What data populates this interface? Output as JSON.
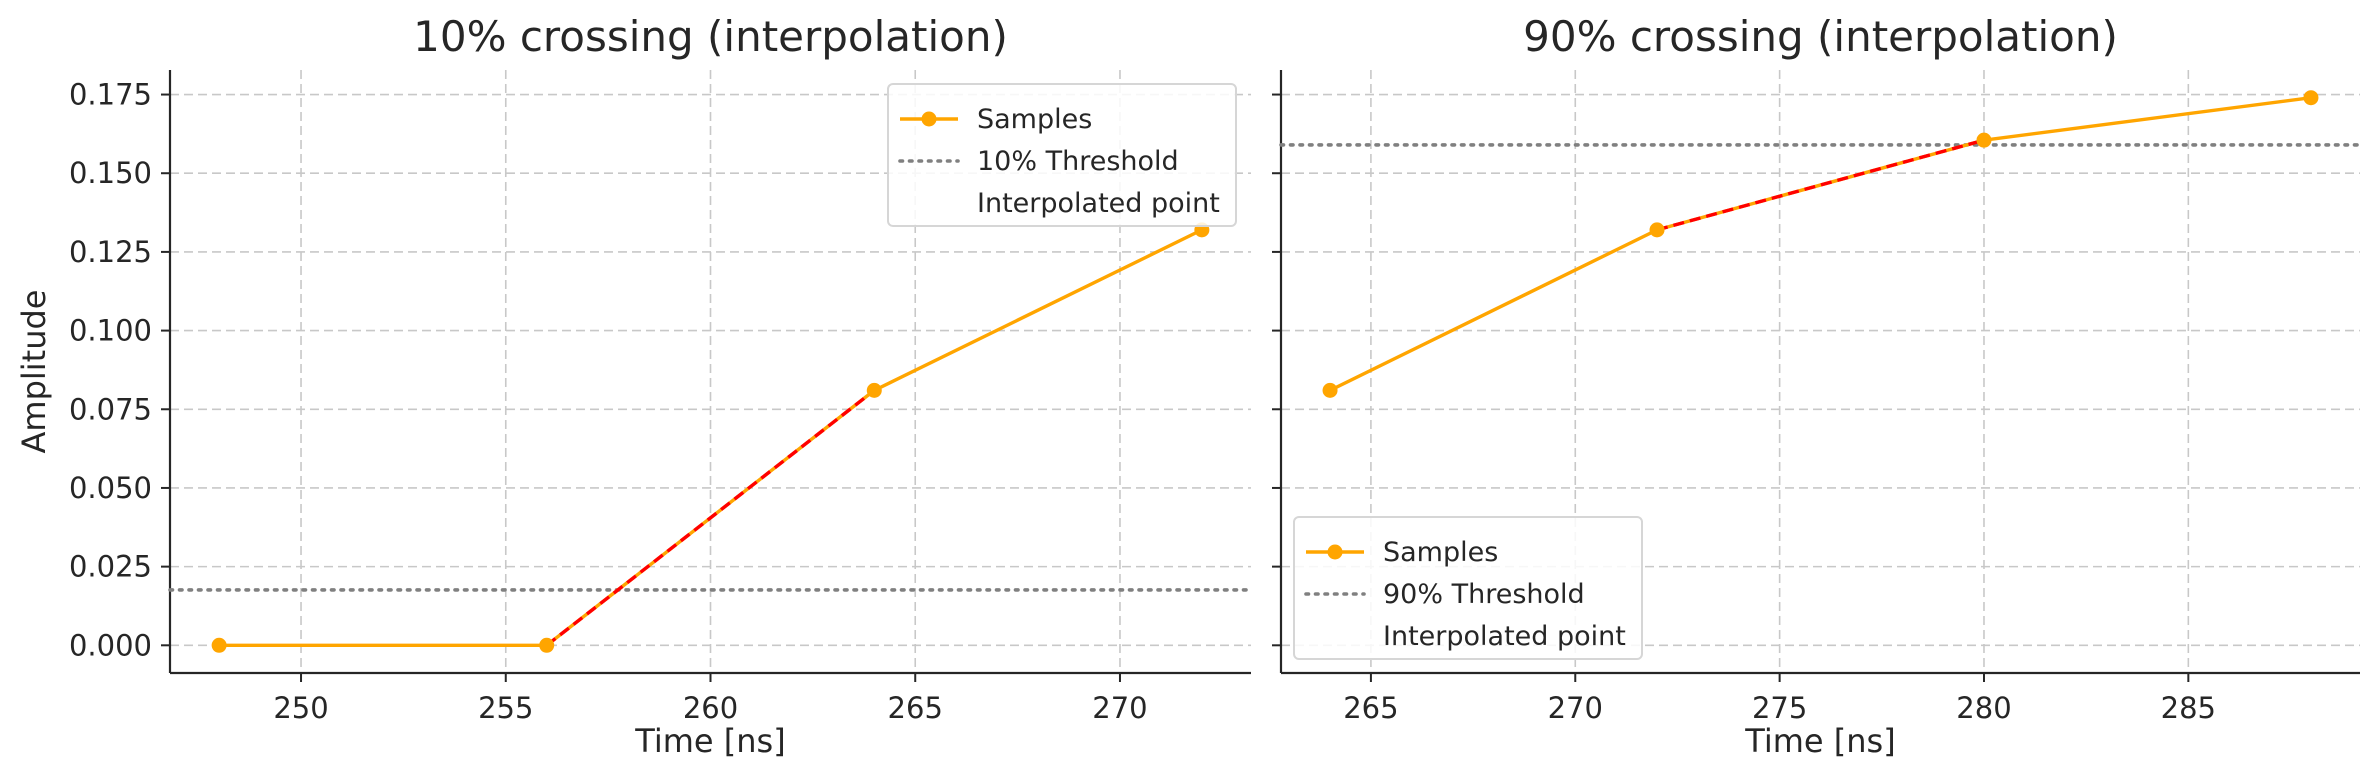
{
  "chart_data": [
    {
      "type": "line",
      "title": "10% crossing (interpolation)",
      "xlabel": "Time [ns]",
      "ylabel": "Amplitude",
      "xlim": [
        246.8,
        273.2
      ],
      "ylim": [
        -0.0088,
        0.1828
      ],
      "xticks": [
        250,
        255,
        260,
        265,
        270
      ],
      "yticks": [
        0.0,
        0.025,
        0.05,
        0.075,
        0.1,
        0.125,
        0.15,
        0.175
      ],
      "xtick_labels": [
        "250",
        "255",
        "260",
        "265",
        "270"
      ],
      "ytick_labels": [
        "0.000",
        "0.025",
        "0.050",
        "0.075",
        "0.100",
        "0.125",
        "0.150",
        "0.175"
      ],
      "grid": true,
      "legend_position": "upper right",
      "series": [
        {
          "name": "Samples",
          "style": "line-marker",
          "color": "#FFA500",
          "x": [
            248,
            256,
            264,
            272
          ],
          "y": [
            0.0,
            0.0,
            0.081,
            0.132
          ]
        },
        {
          "name": "10% Threshold",
          "style": "dotted-hline",
          "color": "#808080",
          "y": 0.0176
        },
        {
          "name": "Interpolated point",
          "style": "none",
          "color": "#FF0000"
        },
        {
          "style": "dashed-segment",
          "color": "#FF0000",
          "x": [
            256,
            264
          ],
          "y": [
            0.0,
            0.081
          ]
        }
      ]
    },
    {
      "type": "line",
      "title": "90% crossing (interpolation)",
      "xlabel": "Time [ns]",
      "ylabel": "",
      "xlim": [
        262.8,
        289.2
      ],
      "ylim": [
        -0.0088,
        0.1828
      ],
      "xticks": [
        265,
        270,
        275,
        280,
        285
      ],
      "yticks": [
        0.0,
        0.025,
        0.05,
        0.075,
        0.1,
        0.125,
        0.15,
        0.175
      ],
      "xtick_labels": [
        "265",
        "270",
        "275",
        "280",
        "285"
      ],
      "ytick_labels": [],
      "grid": true,
      "legend_position": "lower left",
      "series": [
        {
          "name": "Samples",
          "style": "line-marker",
          "color": "#FFA500",
          "x": [
            264,
            272,
            280,
            288
          ],
          "y": [
            0.081,
            0.132,
            0.1605,
            0.174
          ]
        },
        {
          "name": "90% Threshold",
          "style": "dotted-hline",
          "color": "#808080",
          "y": 0.159
        },
        {
          "name": "Interpolated point",
          "style": "none",
          "color": "#FF0000"
        },
        {
          "style": "dashed-segment",
          "color": "#FF0000",
          "x": [
            272,
            280
          ],
          "y": [
            0.132,
            0.1605
          ]
        }
      ]
    }
  ]
}
